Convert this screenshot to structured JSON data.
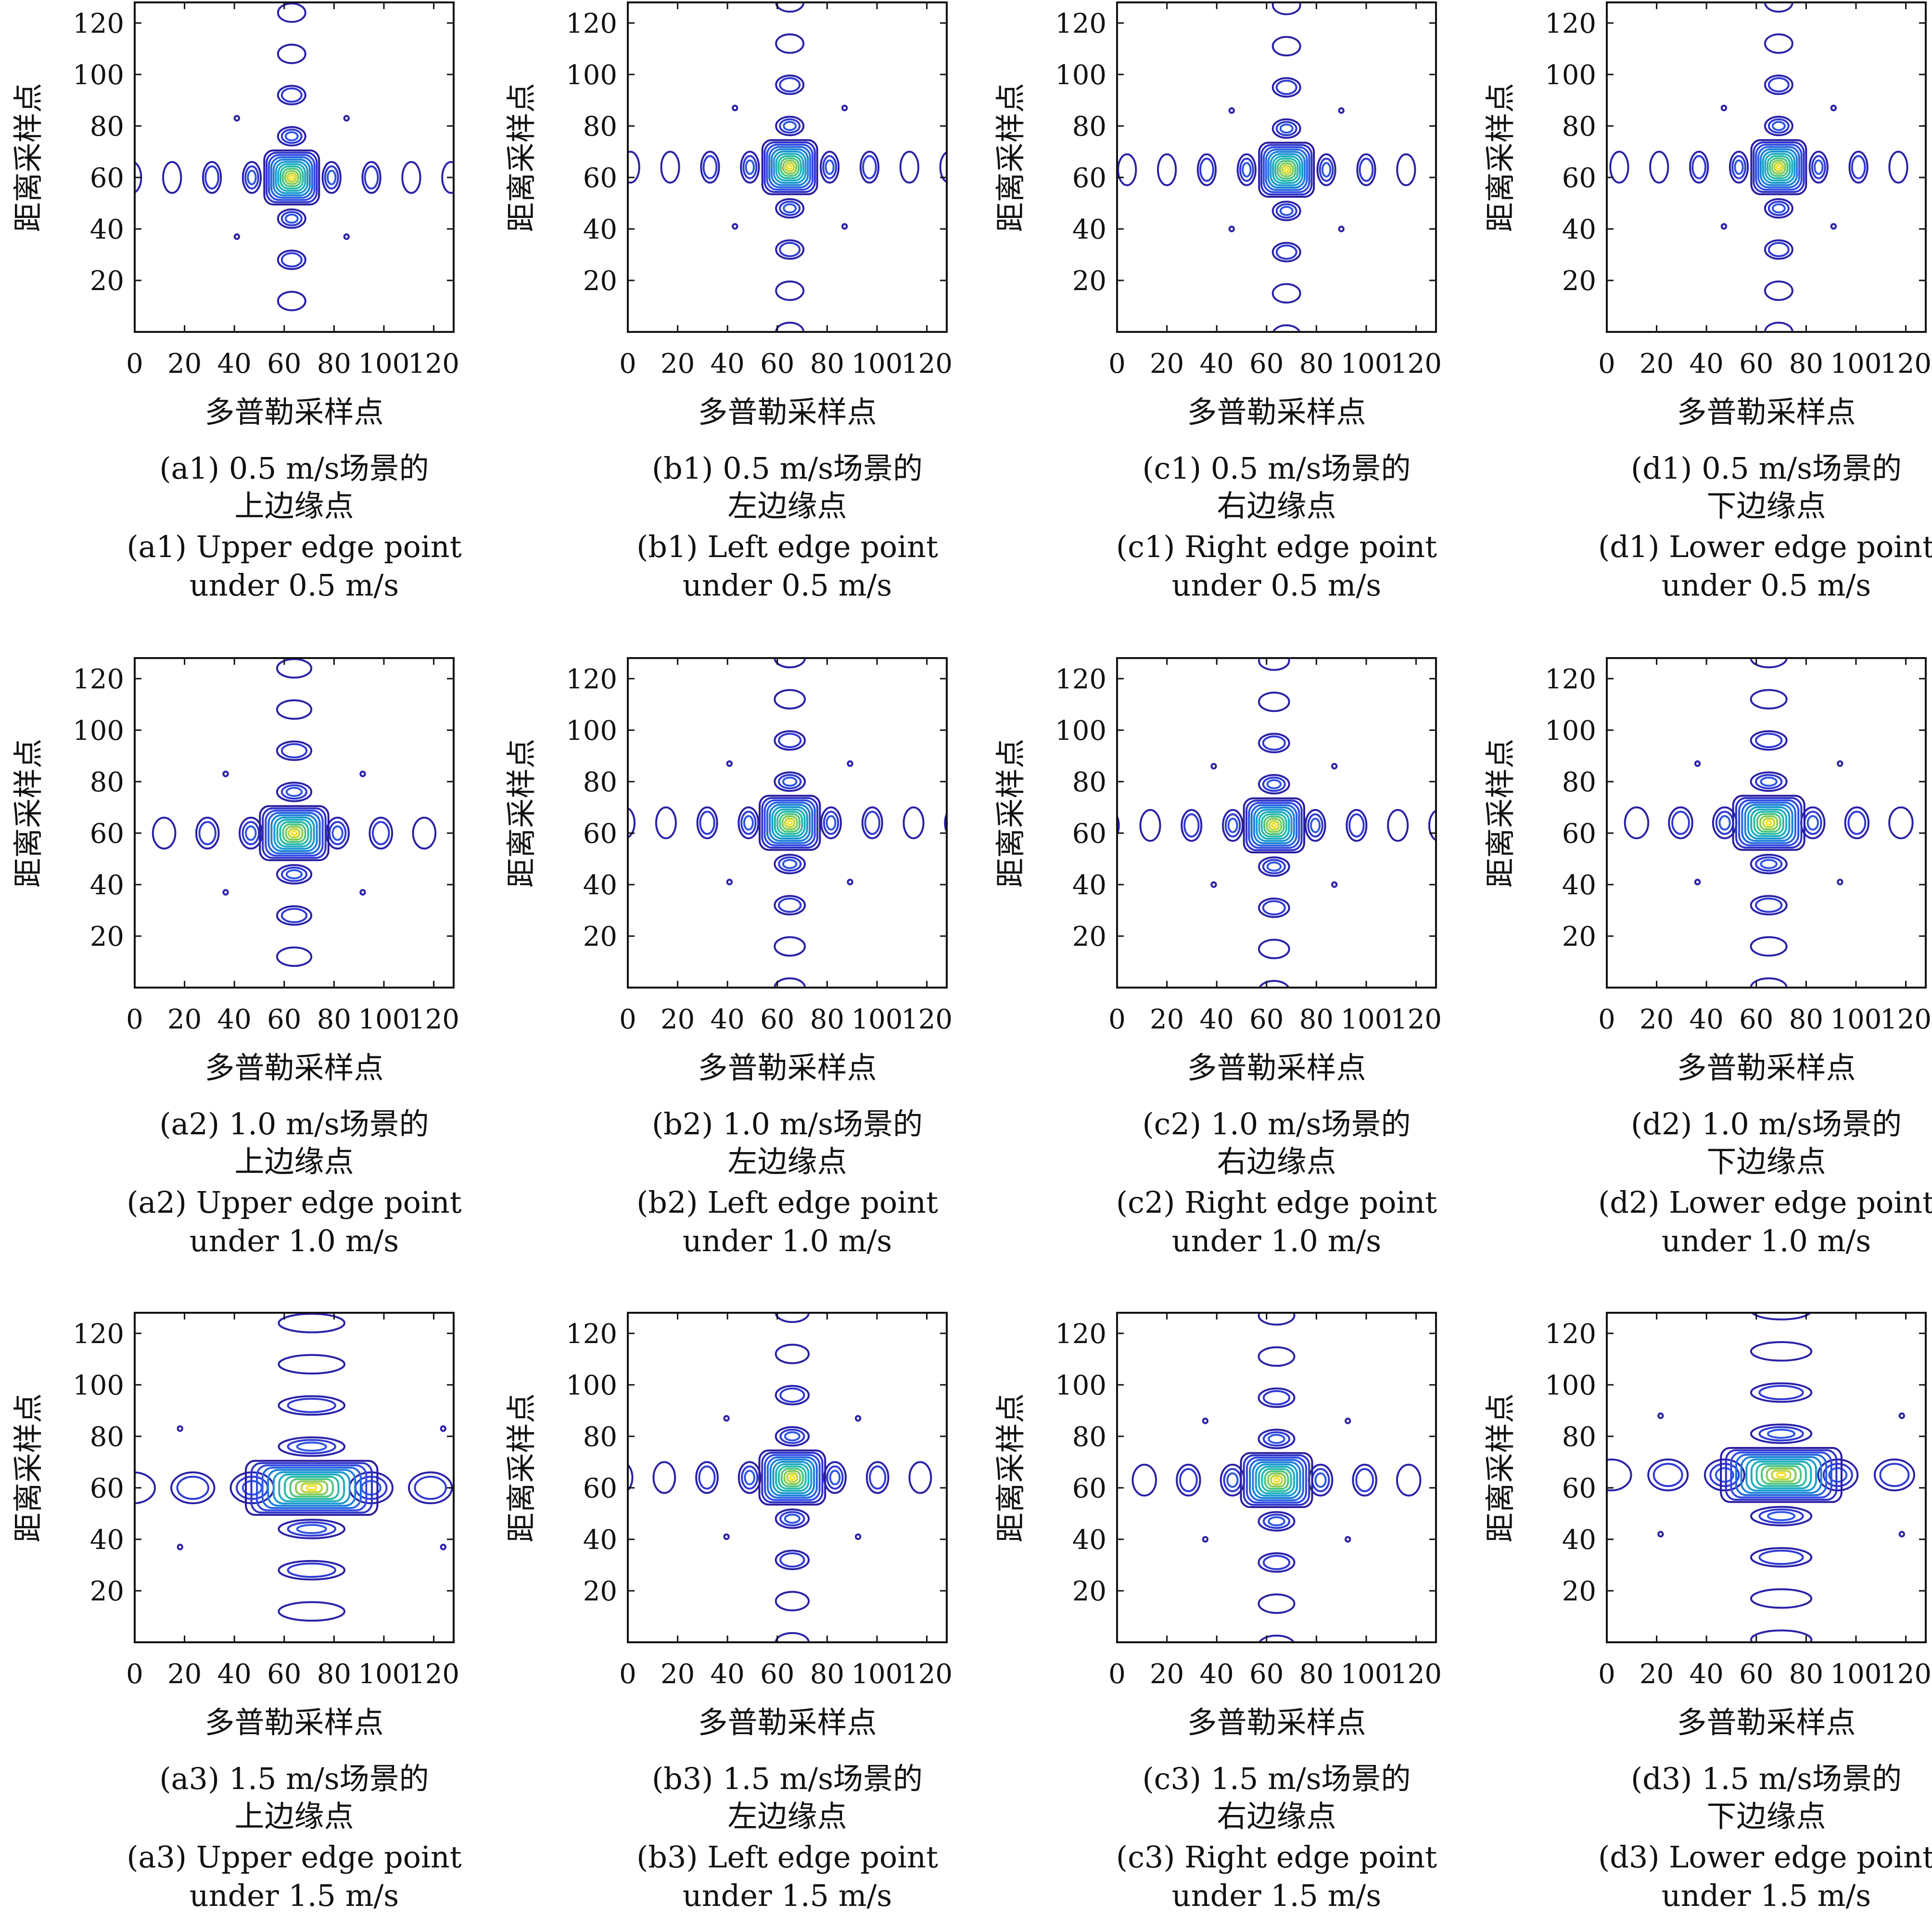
{
  "chart_data": [
    {
      "type": "contour",
      "panel": "a1",
      "caption_zh_1": "(a1) 0.5 m/s场景的",
      "caption_zh_2": "上边缘点",
      "caption_en_1": "(a1) Upper edge point",
      "caption_en_2": "under 0.5 m/s",
      "xlabel": "多普勒采样点",
      "ylabel": "距离采样点",
      "xticks": [
        0,
        20,
        40,
        60,
        80,
        100,
        120
      ],
      "yticks": [
        20,
        40,
        60,
        80,
        100,
        120
      ],
      "xlim": [
        0,
        128
      ],
      "ylim": [
        0,
        128
      ],
      "peak": [
        63,
        60
      ],
      "lobe_spacing": 16,
      "spread_x": 1,
      "spread_y": 1,
      "colormap": "parula"
    },
    {
      "type": "contour",
      "panel": "b1",
      "caption_zh_1": "(b1) 0.5 m/s场景的",
      "caption_zh_2": "左边缘点",
      "caption_en_1": "(b1) Left edge point",
      "caption_en_2": "under 0.5 m/s",
      "xlabel": "多普勒采样点",
      "ylabel": "距离采样点",
      "xticks": [
        0,
        20,
        40,
        60,
        80,
        100,
        120
      ],
      "yticks": [
        20,
        40,
        60,
        80,
        100,
        120
      ],
      "xlim": [
        0,
        128
      ],
      "ylim": [
        0,
        128
      ],
      "peak": [
        65,
        64
      ],
      "lobe_spacing": 16,
      "spread_x": 1,
      "spread_y": 1,
      "colormap": "parula"
    },
    {
      "type": "contour",
      "panel": "c1",
      "caption_zh_1": "(c1) 0.5 m/s场景的",
      "caption_zh_2": "右边缘点",
      "caption_en_1": "(c1) Right edge point",
      "caption_en_2": "under 0.5 m/s",
      "xlabel": "多普勒采样点",
      "ylabel": "距离采样点",
      "xticks": [
        0,
        20,
        40,
        60,
        80,
        100,
        120
      ],
      "yticks": [
        20,
        40,
        60,
        80,
        100,
        120
      ],
      "xlim": [
        0,
        128
      ],
      "ylim": [
        0,
        128
      ],
      "peak": [
        68,
        63
      ],
      "lobe_spacing": 16,
      "spread_x": 1,
      "spread_y": 1,
      "colormap": "parula"
    },
    {
      "type": "contour",
      "panel": "d1",
      "caption_zh_1": "(d1) 0.5 m/s场景的",
      "caption_zh_2": "下边缘点",
      "caption_en_1": "(d1) Lower edge point",
      "caption_en_2": "under 0.5 m/s",
      "xlabel": "多普勒采样点",
      "ylabel": "距离采样点",
      "xticks": [
        0,
        20,
        40,
        60,
        80,
        100,
        120
      ],
      "yticks": [
        20,
        40,
        60,
        80,
        100,
        120
      ],
      "xlim": [
        0,
        128
      ],
      "ylim": [
        0,
        128
      ],
      "peak": [
        69,
        64
      ],
      "lobe_spacing": 16,
      "spread_x": 1,
      "spread_y": 1,
      "colormap": "parula"
    },
    {
      "type": "contour",
      "panel": "a2",
      "caption_zh_1": "(a2) 1.0 m/s场景的",
      "caption_zh_2": "上边缘点",
      "caption_en_1": "(a2) Upper edge point",
      "caption_en_2": "under 1.0 m/s",
      "xlabel": "多普勒采样点",
      "ylabel": "距离采样点",
      "xticks": [
        0,
        20,
        40,
        60,
        80,
        100,
        120
      ],
      "yticks": [
        20,
        40,
        60,
        80,
        100,
        120
      ],
      "xlim": [
        0,
        128
      ],
      "ylim": [
        0,
        128
      ],
      "peak": [
        64,
        60
      ],
      "lobe_spacing": 16,
      "spread_x": 1.25,
      "spread_y": 1,
      "colormap": "parula"
    },
    {
      "type": "contour",
      "panel": "b2",
      "caption_zh_1": "(b2) 1.0 m/s场景的",
      "caption_zh_2": "左边缘点",
      "caption_en_1": "(b2) Left edge point",
      "caption_en_2": "under 1.0 m/s",
      "xlabel": "多普勒采样点",
      "ylabel": "距离采样点",
      "xticks": [
        0,
        20,
        40,
        60,
        80,
        100,
        120
      ],
      "yticks": [
        20,
        40,
        60,
        80,
        100,
        120
      ],
      "xlim": [
        0,
        128
      ],
      "ylim": [
        0,
        128
      ],
      "peak": [
        65,
        64
      ],
      "lobe_spacing": 16,
      "spread_x": 1.1,
      "spread_y": 1,
      "colormap": "parula"
    },
    {
      "type": "contour",
      "panel": "c2",
      "caption_zh_1": "(c2) 1.0 m/s场景的",
      "caption_zh_2": "右边缘点",
      "caption_en_1": "(c2) Right edge point",
      "caption_en_2": "under 1.0 m/s",
      "xlabel": "多普勒采样点",
      "ylabel": "距离采样点",
      "xticks": [
        0,
        20,
        40,
        60,
        80,
        100,
        120
      ],
      "yticks": [
        20,
        40,
        60,
        80,
        100,
        120
      ],
      "xlim": [
        0,
        128
      ],
      "ylim": [
        0,
        128
      ],
      "peak": [
        63,
        63
      ],
      "lobe_spacing": 16,
      "spread_x": 1.1,
      "spread_y": 1,
      "colormap": "parula"
    },
    {
      "type": "contour",
      "panel": "d2",
      "caption_zh_1": "(d2) 1.0 m/s场景的",
      "caption_zh_2": "下边缘点",
      "caption_en_1": "(d2) Lower edge point",
      "caption_en_2": "under 1.0 m/s",
      "xlabel": "多普勒采样点",
      "ylabel": "距离采样点",
      "xticks": [
        0,
        20,
        40,
        60,
        80,
        100,
        120
      ],
      "yticks": [
        20,
        40,
        60,
        80,
        100,
        120
      ],
      "xlim": [
        0,
        128
      ],
      "ylim": [
        0,
        128
      ],
      "peak": [
        65,
        64
      ],
      "lobe_spacing": 16,
      "spread_x": 1.3,
      "spread_y": 1,
      "colormap": "parula"
    },
    {
      "type": "contour",
      "panel": "a3",
      "caption_zh_1": "(a3) 1.5 m/s场景的",
      "caption_zh_2": "上边缘点",
      "caption_en_1": "(a3) Upper edge point",
      "caption_en_2": "under 1.5 m/s",
      "xlabel": "多普勒采样点",
      "ylabel": "距离采样点",
      "xticks": [
        0,
        20,
        40,
        60,
        80,
        100,
        120
      ],
      "yticks": [
        20,
        40,
        60,
        80,
        100,
        120
      ],
      "xlim": [
        0,
        128
      ],
      "ylim": [
        0,
        128
      ],
      "peak": [
        71,
        60
      ],
      "lobe_spacing": 16,
      "spread_x": 2.4,
      "spread_y": 1,
      "colormap": "parula"
    },
    {
      "type": "contour",
      "panel": "b3",
      "caption_zh_1": "(b3) 1.5 m/s场景的",
      "caption_zh_2": "左边缘点",
      "caption_en_1": "(b3) Left edge point",
      "caption_en_2": "under 1.5 m/s",
      "xlabel": "多普勒采样点",
      "ylabel": "距离采样点",
      "xticks": [
        0,
        20,
        40,
        60,
        80,
        100,
        120
      ],
      "yticks": [
        20,
        40,
        60,
        80,
        100,
        120
      ],
      "xlim": [
        0,
        128
      ],
      "ylim": [
        0,
        128
      ],
      "peak": [
        66,
        64
      ],
      "lobe_spacing": 16,
      "spread_x": 1.2,
      "spread_y": 1,
      "colormap": "parula"
    },
    {
      "type": "contour",
      "panel": "c3",
      "caption_zh_1": "(c3) 1.5 m/s场景的",
      "caption_zh_2": "右边缘点",
      "caption_en_1": "(c3) Right edge point",
      "caption_en_2": "under 1.5 m/s",
      "xlabel": "多普勒采样点",
      "ylabel": "距离采样点",
      "xticks": [
        0,
        20,
        40,
        60,
        80,
        100,
        120
      ],
      "yticks": [
        20,
        40,
        60,
        80,
        100,
        120
      ],
      "xlim": [
        0,
        128
      ],
      "ylim": [
        0,
        128
      ],
      "peak": [
        64,
        63
      ],
      "lobe_spacing": 16,
      "spread_x": 1.3,
      "spread_y": 1,
      "colormap": "parula"
    },
    {
      "type": "contour",
      "panel": "d3",
      "caption_zh_1": "(d3) 1.5 m/s场景的",
      "caption_zh_2": "下边缘点",
      "caption_en_1": "(d3) Lower edge point",
      "caption_en_2": "under 1.5 m/s",
      "xlabel": "多普勒采样点",
      "ylabel": "距离采样点",
      "xticks": [
        0,
        20,
        40,
        60,
        80,
        100,
        120
      ],
      "yticks": [
        20,
        40,
        60,
        80,
        100,
        120
      ],
      "xlim": [
        0,
        128
      ],
      "ylim": [
        0,
        128
      ],
      "peak": [
        70,
        65
      ],
      "lobe_spacing": 16,
      "spread_x": 2.2,
      "spread_y": 1,
      "colormap": "parula"
    }
  ],
  "colors": {
    "outer_contour": "#2b1a9e",
    "mid_contour": "#1f77d0",
    "inner_contour": "#2bc0a0",
    "peak": "#f9e021",
    "axis": "#111111"
  }
}
